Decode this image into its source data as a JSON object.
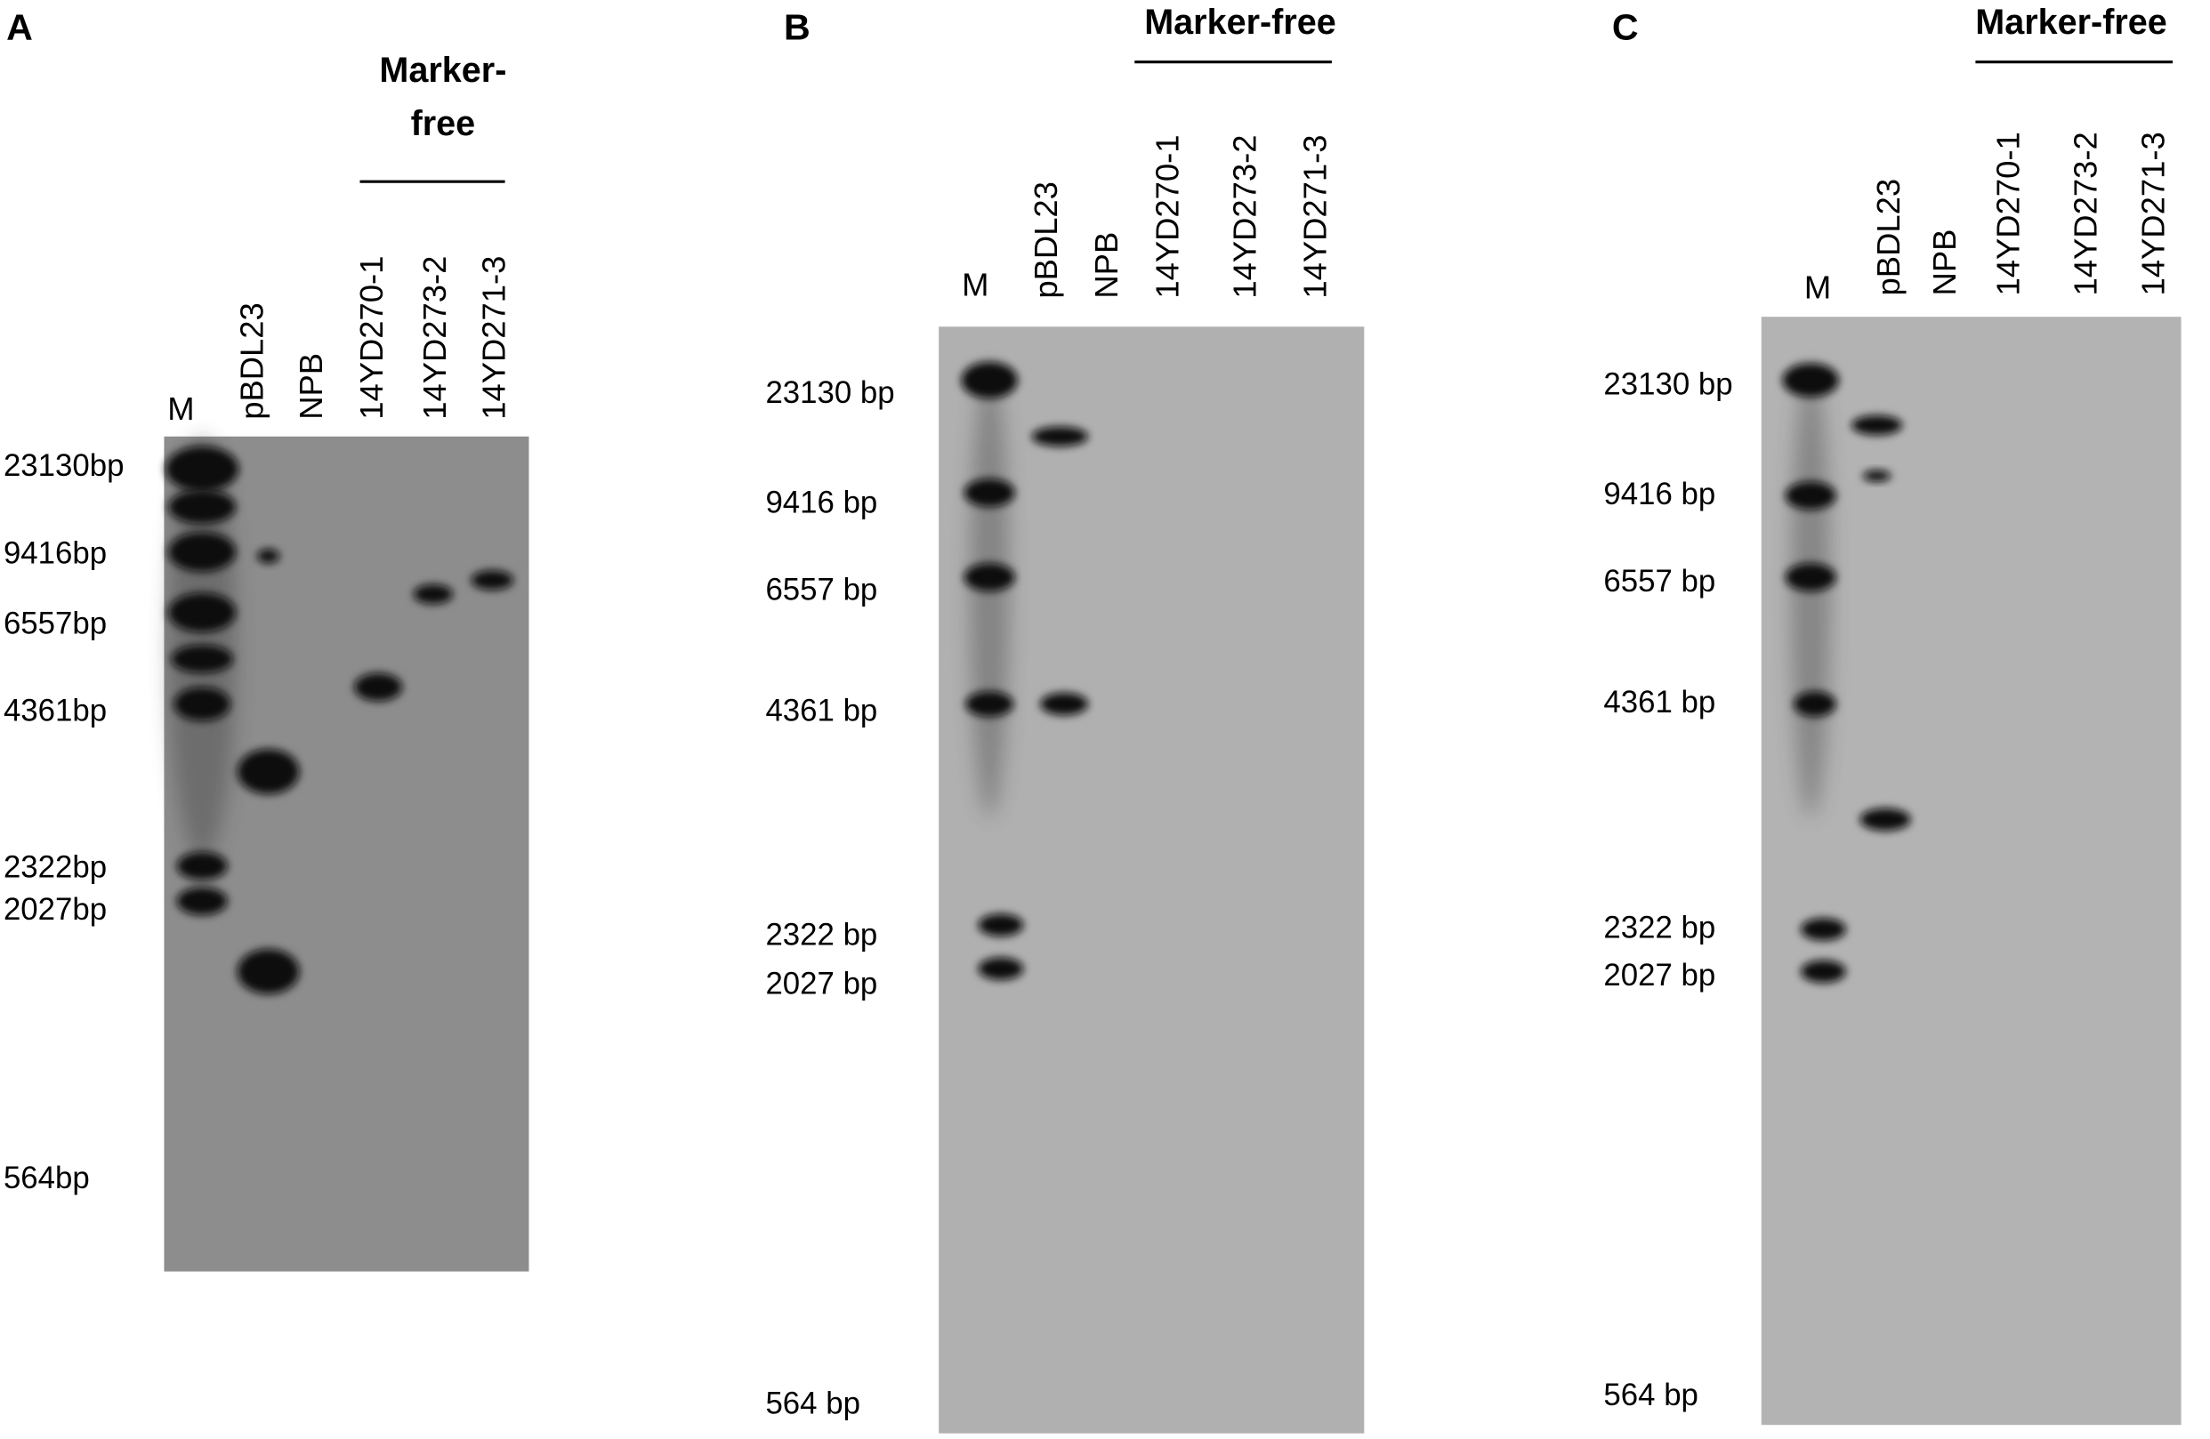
{
  "panels": [
    {
      "label": "A",
      "header": [
        "Marker-",
        "free"
      ],
      "lanes": [
        "M",
        "pBDL23",
        "NPB",
        "14YD270-1",
        "14YD273-2",
        "14YD271-3"
      ],
      "sizes": [
        "23130bp",
        "9416bp",
        "6557bp",
        "4361bp",
        "2322bp",
        "2027bp",
        "564bp"
      ]
    },
    {
      "label": "B",
      "header": [
        "Marker-free"
      ],
      "lanes": [
        "M",
        "pBDL23",
        "NPB",
        "14YD270-1",
        "14YD273-2",
        "14YD271-3"
      ],
      "sizes": [
        "23130 bp",
        "9416 bp",
        "6557 bp",
        "4361 bp",
        "2322 bp",
        "2027 bp",
        "564 bp"
      ]
    },
    {
      "label": "C",
      "header": [
        "Marker-free"
      ],
      "lanes": [
        "M",
        "pBDL23",
        "NPB",
        "14YD270-1",
        "14YD273-2",
        "14YD271-3"
      ],
      "sizes": [
        "23130 bp",
        "9416 bp",
        "6557 bp",
        "4361 bp",
        "2322 bp",
        "2027 bp",
        "564 bp"
      ]
    }
  ]
}
